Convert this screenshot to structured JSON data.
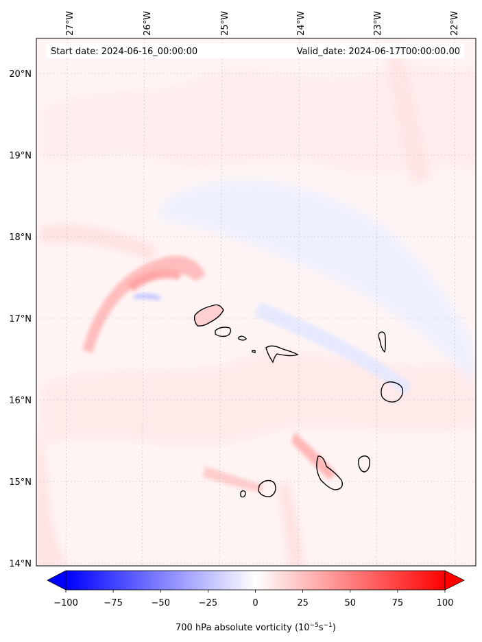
{
  "map": {
    "start_date": "Start date: 2024-06-16_00:00:00",
    "valid_date": "Valid_date: 2024-06-17T00:00:00.00",
    "lon_ticks": [
      "27°W",
      "26°W",
      "25°W",
      "24°W",
      "23°W",
      "22°W"
    ],
    "lat_ticks": [
      "20°N",
      "19°N",
      "18°N",
      "17°N",
      "16°N",
      "15°N",
      "14°N"
    ],
    "extent": {
      "lon": [
        -27.4,
        -21.75
      ],
      "lat": [
        13.95,
        20.43
      ]
    },
    "gridlines": true,
    "islands": [
      "Santo Antão",
      "São Vicente",
      "Santa Luzia",
      "São Nicolau",
      "Sal",
      "Boa Vista",
      "Maio",
      "Santiago",
      "Fogo",
      "Brava"
    ]
  },
  "colorbar": {
    "label_prefix": "700 hPa absolute vorticity (10",
    "label_exp1": "−5",
    "label_mid": "s",
    "label_exp2": "−1",
    "label_suffix": ")",
    "ticks": [
      "−100",
      "−75",
      "−50",
      "−25",
      "0",
      "25",
      "50",
      "75",
      "100"
    ],
    "range": [
      -100,
      100
    ],
    "colormap": "bwr",
    "extend": "both",
    "low_color": "#0000ff",
    "mid_color": "#ffffff",
    "high_color": "#ff0000"
  }
}
